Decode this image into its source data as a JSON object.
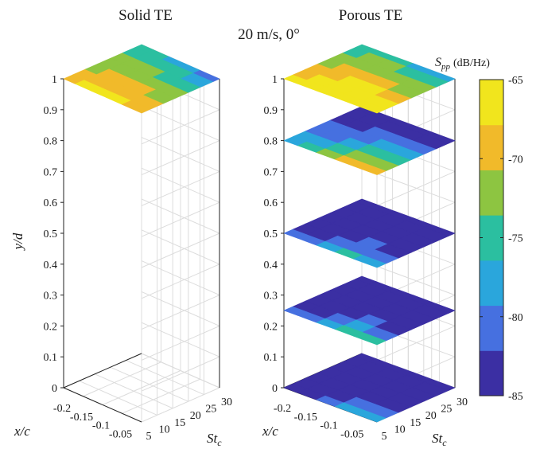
{
  "figure": {
    "suptitle": "20 m/s, 0°"
  },
  "chart_data": [
    {
      "type": "heatmap",
      "title": "Solid TE",
      "xlabel": "x/c",
      "ylabel": "St_c",
      "zlabel": "y/d",
      "xlim": [
        -0.2,
        0
      ],
      "ylim": [
        5,
        30
      ],
      "zlim": [
        0,
        1
      ],
      "x_ticks": [
        "-0.2",
        "-0.15",
        "-0.1",
        "-0.05"
      ],
      "y_ticks": [
        "5",
        "10",
        "15",
        "20",
        "25",
        "30"
      ],
      "z_ticks": [
        "0",
        "0.1",
        "0.2",
        "0.3",
        "0.4",
        "0.5",
        "0.6",
        "0.7",
        "0.8",
        "0.9",
        "1"
      ],
      "grid": true,
      "x_centers": [
        -0.19,
        -0.15,
        -0.11,
        -0.07,
        -0.03
      ],
      "y_centers": [
        6,
        10,
        14,
        18,
        22,
        26,
        30
      ],
      "slices": [
        {
          "y_d": 1.0,
          "z": [
            [
              -68,
              -70,
              -71,
              -72,
              -73,
              -75,
              -76
            ],
            [
              -67,
              -68,
              -70,
              -71,
              -73,
              -75,
              -76
            ],
            [
              -67,
              -68,
              -70,
              -71,
              -73,
              -76,
              -78
            ],
            [
              -67,
              -68,
              -70,
              -72,
              -74,
              -76,
              -79
            ],
            [
              -68,
              -69,
              -71,
              -73,
              -75,
              -77,
              -80
            ]
          ]
        }
      ]
    },
    {
      "type": "heatmap",
      "title": "Porous TE",
      "xlabel": "x/c",
      "ylabel": "St_c",
      "zlabel": "y/d",
      "xlim": [
        -0.2,
        0
      ],
      "ylim": [
        5,
        30
      ],
      "zlim": [
        0,
        1
      ],
      "x_ticks": [
        "-0.2",
        "-0.15",
        "-0.1",
        "-0.05"
      ],
      "y_ticks": [
        "5",
        "10",
        "15",
        "20",
        "25",
        "30"
      ],
      "z_ticks": [
        "0",
        "0.1",
        "0.2",
        "0.3",
        "0.4",
        "0.5",
        "0.6",
        "0.7",
        "0.8",
        "0.9",
        "1"
      ],
      "grid": true,
      "x_centers": [
        -0.19,
        -0.15,
        -0.11,
        -0.07,
        -0.03
      ],
      "y_centers": [
        6,
        10,
        14,
        18,
        22,
        26,
        30
      ],
      "slices": [
        {
          "y_d": 1.0,
          "z": [
            [
              -67,
              -69,
              -70,
              -71,
              -73,
              -74,
              -76
            ],
            [
              -66,
              -67,
              -69,
              -70,
              -71,
              -73,
              -75
            ],
            [
              -65,
              -66,
              -67,
              -69,
              -71,
              -73,
              -76
            ],
            [
              -65,
              -66,
              -67,
              -69,
              -71,
              -74,
              -77
            ],
            [
              -66,
              -67,
              -69,
              -71,
              -73,
              -76,
              -79
            ]
          ]
        },
        {
          "y_d": 0.8,
          "z": [
            [
              -77,
              -79,
              -81,
              -82,
              -83,
              -84,
              -85
            ],
            [
              -74,
              -77,
              -80,
              -82,
              -83,
              -84,
              -85
            ],
            [
              -71,
              -74,
              -77,
              -80,
              -82,
              -84,
              -85
            ],
            [
              -69,
              -72,
              -75,
              -78,
              -81,
              -83,
              -85
            ],
            [
              -70,
              -73,
              -76,
              -79,
              -82,
              -84,
              -85
            ]
          ]
        },
        {
          "y_d": 0.5,
          "z": [
            [
              -82,
              -84,
              -85,
              -85,
              -85,
              -85,
              -85
            ],
            [
              -80,
              -83,
              -84,
              -85,
              -85,
              -85,
              -85
            ],
            [
              -78,
              -81,
              -83,
              -84,
              -85,
              -85,
              -85
            ],
            [
              -76,
              -80,
              -82,
              -84,
              -85,
              -85,
              -85
            ],
            [
              -77,
              -80,
              -83,
              -84,
              -85,
              -85,
              -85
            ]
          ]
        },
        {
          "y_d": 0.25,
          "z": [
            [
              -82,
              -84,
              -85,
              -85,
              -85,
              -85,
              -85
            ],
            [
              -80,
              -83,
              -84,
              -85,
              -85,
              -85,
              -85
            ],
            [
              -78,
              -81,
              -83,
              -84,
              -85,
              -85,
              -85
            ],
            [
              -74,
              -79,
              -82,
              -84,
              -85,
              -85,
              -85
            ],
            [
              -76,
              -80,
              -83,
              -84,
              -85,
              -85,
              -85
            ]
          ]
        },
        {
          "y_d": 0.0,
          "z": [
            [
              -84,
              -85,
              -85,
              -85,
              -85,
              -85,
              -85
            ],
            [
              -83,
              -85,
              -85,
              -85,
              -85,
              -85,
              -85
            ],
            [
              -81,
              -84,
              -85,
              -85,
              -85,
              -85,
              -85
            ],
            [
              -77,
              -81,
              -84,
              -85,
              -85,
              -85,
              -85
            ],
            [
              -78,
              -82,
              -84,
              -85,
              -85,
              -85,
              -85
            ]
          ]
        }
      ]
    }
  ],
  "colorbar": {
    "label_prefix": "S",
    "label_subscript": "pp",
    "label_units": "(dB/Hz)",
    "range": [
      -85,
      -65
    ],
    "ticks": [
      "-65",
      "-70",
      "-75",
      "-80",
      "-85"
    ],
    "colors": [
      "#3b2fa3",
      "#4670e0",
      "#2aa6dc",
      "#2bbfa0",
      "#8dc541",
      "#f1ba2a",
      "#f1e51d"
    ]
  }
}
